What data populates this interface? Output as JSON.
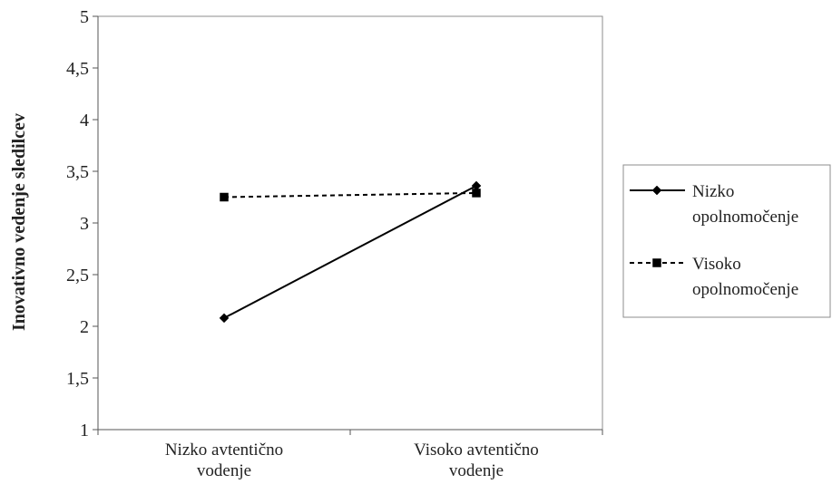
{
  "chart_data": {
    "type": "line",
    "title": "",
    "xlabel": "",
    "ylabel": "Inovativno vedenje sledilcev",
    "ylim": [
      1,
      5
    ],
    "yticks": [
      {
        "value": 1,
        "label": "1"
      },
      {
        "value": 1.5,
        "label": "1,5"
      },
      {
        "value": 2,
        "label": "2"
      },
      {
        "value": 2.5,
        "label": "2,5"
      },
      {
        "value": 3,
        "label": "3"
      },
      {
        "value": 3.5,
        "label": "3,5"
      },
      {
        "value": 4,
        "label": "4"
      },
      {
        "value": 4.5,
        "label": "4,5"
      },
      {
        "value": 5,
        "label": "5"
      }
    ],
    "categories": [
      [
        "Nizko avtentično",
        "vodenje"
      ],
      [
        "Visoko avtentično",
        "vodenje"
      ]
    ],
    "grid": false,
    "legend_position": "right",
    "series": [
      {
        "name": [
          "Nizko",
          "opolnomočenje"
        ],
        "values": [
          2.08,
          3.36
        ],
        "line_style": "solid",
        "marker": "diamond",
        "color": "#000000"
      },
      {
        "name": [
          "Visoko",
          "opolnomočenje"
        ],
        "values": [
          3.25,
          3.29
        ],
        "line_style": "dashed",
        "marker": "square",
        "color": "#000000"
      }
    ]
  }
}
